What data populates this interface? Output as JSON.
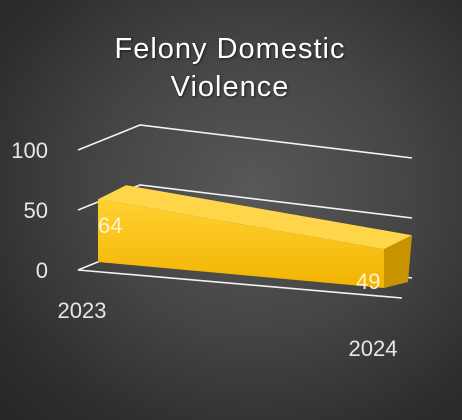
{
  "chart_data": {
    "type": "bar",
    "title": "Felony Domestic Violence",
    "categories": [
      "2023",
      "2024"
    ],
    "values": [
      64,
      49
    ],
    "data_labels": [
      "64",
      "49"
    ],
    "yticks": [
      "0",
      "50",
      "100"
    ],
    "ylim": [
      0,
      100
    ],
    "grid": true,
    "legend": "none",
    "style": "3d-perspective",
    "colors": {
      "bar_front": "#FFC000",
      "bar_top": "#FFD54A",
      "bar_side": "#C99400",
      "gridline": "#f2f2f2",
      "background": "#404040"
    }
  }
}
